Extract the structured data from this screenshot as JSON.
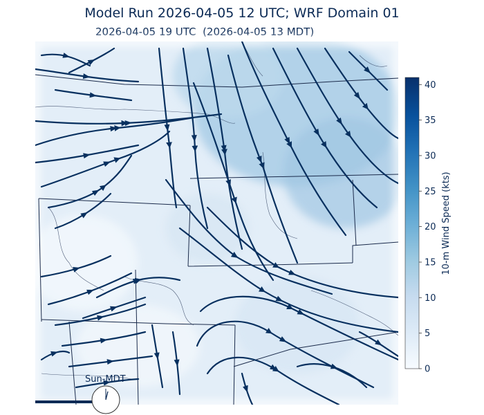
{
  "header": {
    "title": "Model Run 2026-04-05 12 UTC; WRF Domain 01",
    "subtitle": "2026-04-05 19 UTC  (2026-04-05 13 MDT)"
  },
  "clock": {
    "label": "Sun-MDT"
  },
  "colors": {
    "streamline": "#08305f",
    "boundary": "#1a2a4a",
    "field_low": "#f3f8fd",
    "field_high": "#08306b",
    "tick_text": "#0b2a55"
  },
  "chart_data": {
    "type": "heatmap",
    "title": "Model Run 2026-04-05 12 UTC; WRF Domain 01",
    "subtitle": "2026-04-05 19 UTC  (2026-04-05 13 MDT)",
    "colorbar": {
      "label": "10-m Wind Speed (kts)",
      "range": [
        0,
        41
      ],
      "ticks": [
        0,
        5,
        10,
        15,
        20,
        25,
        30,
        35,
        40
      ],
      "colormap": "Blues"
    },
    "overlay": "streamlines"
  }
}
